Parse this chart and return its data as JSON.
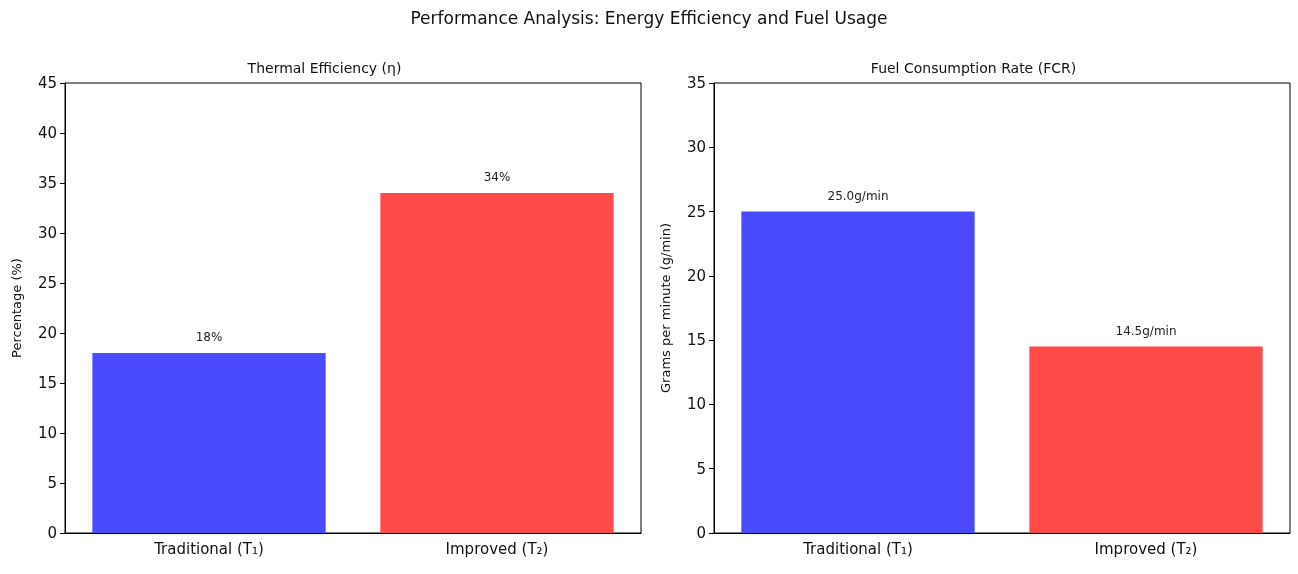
{
  "chart_data": [
    {
      "type": "bar",
      "title": "Thermal Efficiency (η)",
      "ylabel": "Percentage (%)",
      "categories": [
        "Traditional (T₁)",
        "Improved (T₂)"
      ],
      "values": [
        18,
        34
      ],
      "colors": [
        "#4a4aff",
        "#ff4a4a"
      ],
      "value_labels": [
        "18%",
        "34%"
      ],
      "ylim": [
        0,
        45
      ],
      "yticks": [
        0,
        5,
        10,
        15,
        20,
        25,
        30,
        35,
        40,
        45
      ],
      "grid": false,
      "annotations": [
        "Performance Analysis: Energy Efficiency and Fuel Usage"
      ]
    },
    {
      "type": "bar",
      "title": "Fuel Consumption Rate (FCR)",
      "ylabel": "Grams per minute (g/min)",
      "categories": [
        "Traditional (T₁)",
        "Improved (T₂)"
      ],
      "values": [
        25.0,
        14.5
      ],
      "colors": [
        "#4a4aff",
        "#ff4a4a"
      ],
      "value_labels": [
        "25.0g/min",
        "14.5g/min"
      ],
      "ylim": [
        0,
        35
      ],
      "yticks": [
        0,
        5,
        10,
        15,
        20,
        25,
        30,
        35
      ],
      "grid": false
    }
  ]
}
